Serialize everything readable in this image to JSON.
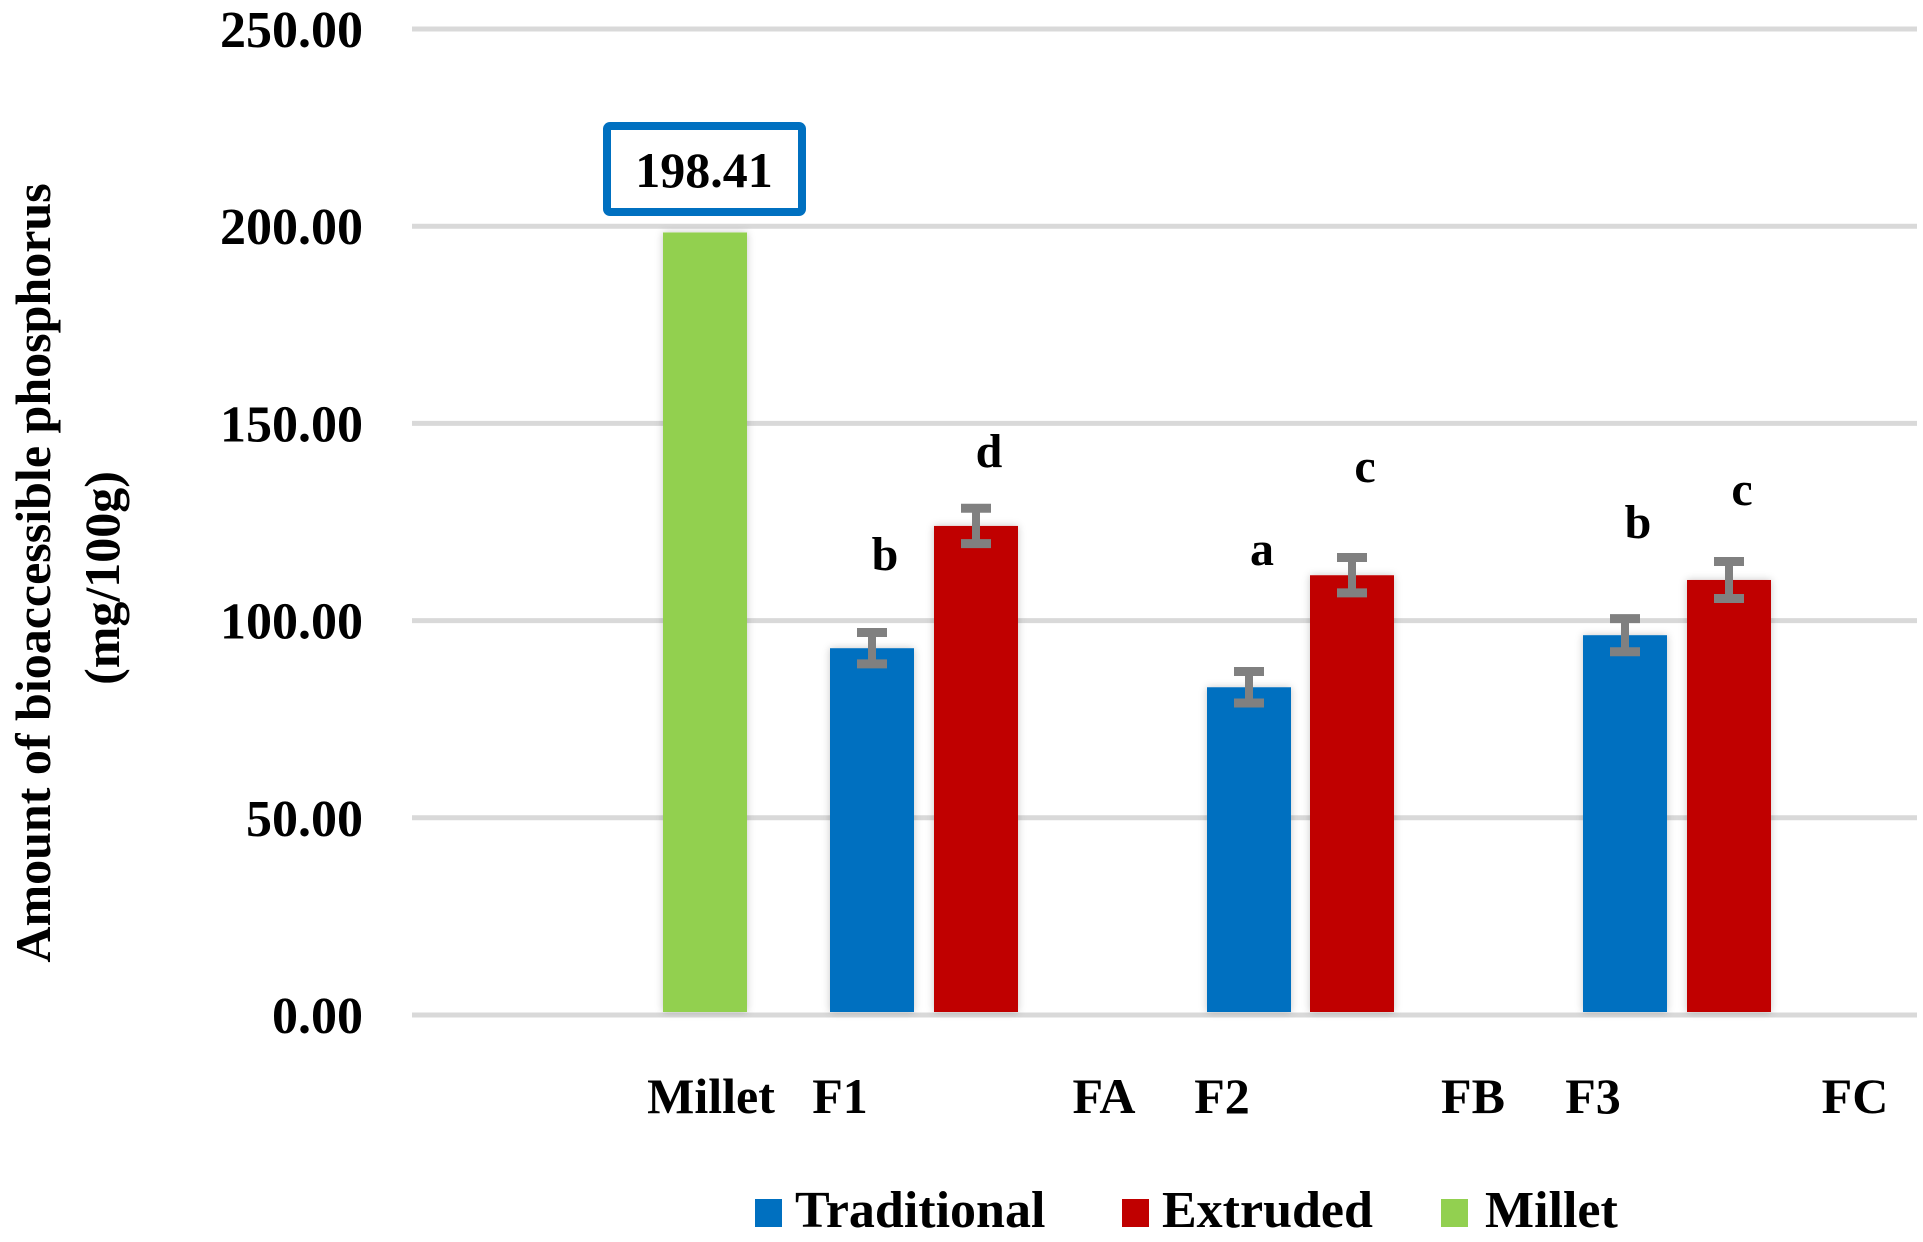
{
  "chart_data": {
    "type": "bar",
    "title": "",
    "xlabel": "",
    "ylabel": "Amount of bioaccessible phosphorus",
    "ylabel_unit": "(mg/100g)",
    "ylim": [
      0,
      250
    ],
    "yticks": [
      0,
      50,
      100,
      150,
      200,
      250
    ],
    "ytick_labels": [
      "0.00",
      "50.00",
      "100.00",
      "150.00",
      "200.00",
      "250.00"
    ],
    "grid": true,
    "categories": [
      "Millet",
      "F1",
      "FA",
      "F2",
      "FB",
      "F3",
      "FC"
    ],
    "series": [
      {
        "name": "Traditional",
        "color": "#0070C0",
        "values": [
          null,
          93.0,
          null,
          83.1,
          null,
          96.3,
          null
        ],
        "error": [
          null,
          5.0,
          null,
          5.0,
          null,
          5.2,
          null
        ],
        "significance": [
          null,
          "b",
          null,
          "a",
          null,
          "b",
          null
        ]
      },
      {
        "name": "Extruded",
        "color": "#C00000",
        "values": [
          null,
          124.0,
          null,
          111.5,
          null,
          110.3,
          null
        ],
        "error": [
          null,
          5.5,
          null,
          5.5,
          null,
          5.7,
          null
        ],
        "significance": [
          null,
          "d",
          null,
          "c",
          null,
          "c",
          null
        ]
      },
      {
        "name": "Millet",
        "color": "#92D050",
        "values": [
          198.41,
          null,
          null,
          null,
          null,
          null,
          null
        ],
        "error": [
          null,
          null,
          null,
          null,
          null,
          null,
          null
        ],
        "significance": [
          null,
          null,
          null,
          null,
          null,
          null,
          null
        ]
      }
    ],
    "annotations": [
      {
        "text": "198.41",
        "target": "Millet",
        "style": "boxed",
        "border_color": "#0070C0"
      }
    ],
    "legend": {
      "position": "bottom",
      "entries": [
        "Traditional",
        "Extruded",
        "Millet"
      ]
    },
    "error_bar_color": "#808080",
    "gridline_color": "#D9D9D9"
  }
}
